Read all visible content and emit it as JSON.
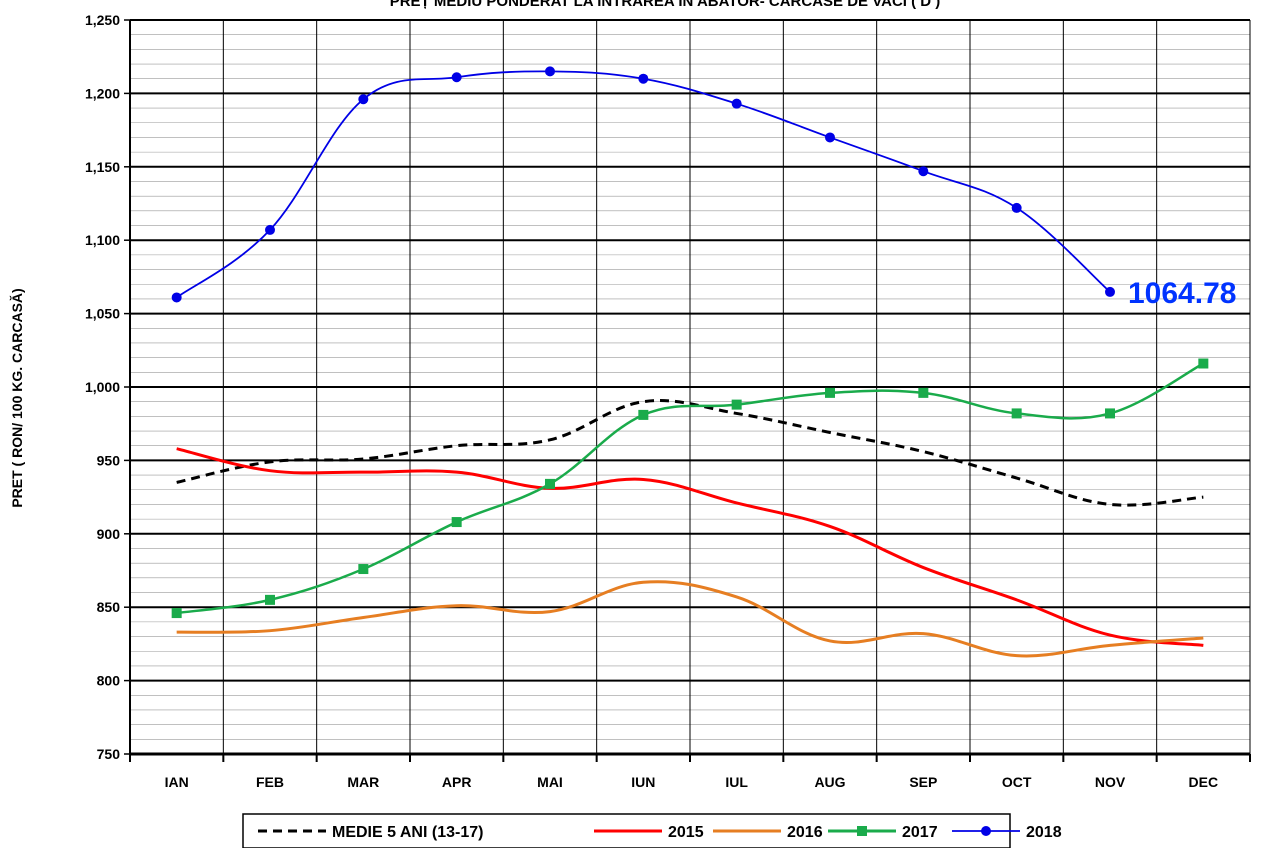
{
  "chart_data": {
    "type": "line",
    "title": "PREȚ MEDIU PONDERAT LA INTRAREA ÎN ABATOR- CARCASE DE VACI ( D )",
    "ylabel": "PRET ( RON/ 100 KG. CARCASĂ)",
    "xlabel": "",
    "categories": [
      "IAN",
      "FEB",
      "MAR",
      "APR",
      "MAI",
      "IUN",
      "IUL",
      "AUG",
      "SEP",
      "OCT",
      "NOV",
      "DEC"
    ],
    "ylim": [
      750,
      1250
    ],
    "yticks": [
      750,
      800,
      850,
      900,
      950,
      1000,
      1050,
      1100,
      1150,
      1200,
      1250
    ],
    "ytick_labels": [
      "750",
      "800",
      "850",
      "900",
      "950",
      "1,000",
      "1,050",
      "1,100",
      "1,150",
      "1,200",
      "1,250"
    ],
    "minor_grid_step": 10,
    "grid": true,
    "legend_position": "bottom",
    "series": [
      {
        "name": "MEDIE 5 ANI (13-17)",
        "color": "#000000",
        "dashed": true,
        "marker": "none",
        "values": [
          935,
          949,
          951,
          960,
          964,
          990,
          982,
          969,
          956,
          938,
          920,
          925
        ]
      },
      {
        "name": "2015",
        "color": "#ff0000",
        "dashed": false,
        "marker": "none",
        "values": [
          958,
          943,
          942,
          942,
          931,
          937,
          921,
          905,
          877,
          855,
          831,
          824
        ]
      },
      {
        "name": "2016",
        "color": "#e67e22",
        "dashed": false,
        "marker": "none",
        "values": [
          833,
          834,
          843,
          851,
          847,
          867,
          857,
          827,
          832,
          817,
          824,
          829
        ]
      },
      {
        "name": "2017",
        "color": "#1aab4b",
        "dashed": false,
        "marker": "square",
        "values": [
          846,
          855,
          876,
          908,
          934,
          981,
          988,
          996,
          996,
          982,
          982,
          1016
        ]
      },
      {
        "name": "2018",
        "color": "#0000e6",
        "dashed": false,
        "marker": "circle",
        "values": [
          1061,
          1107,
          1196,
          1211,
          1215,
          1210,
          1193,
          1170,
          1147,
          1122,
          1064.78,
          null
        ]
      }
    ],
    "annotation": {
      "text": "1064.78",
      "series": "2018",
      "category": "NOV",
      "color": "#0033ff"
    }
  }
}
